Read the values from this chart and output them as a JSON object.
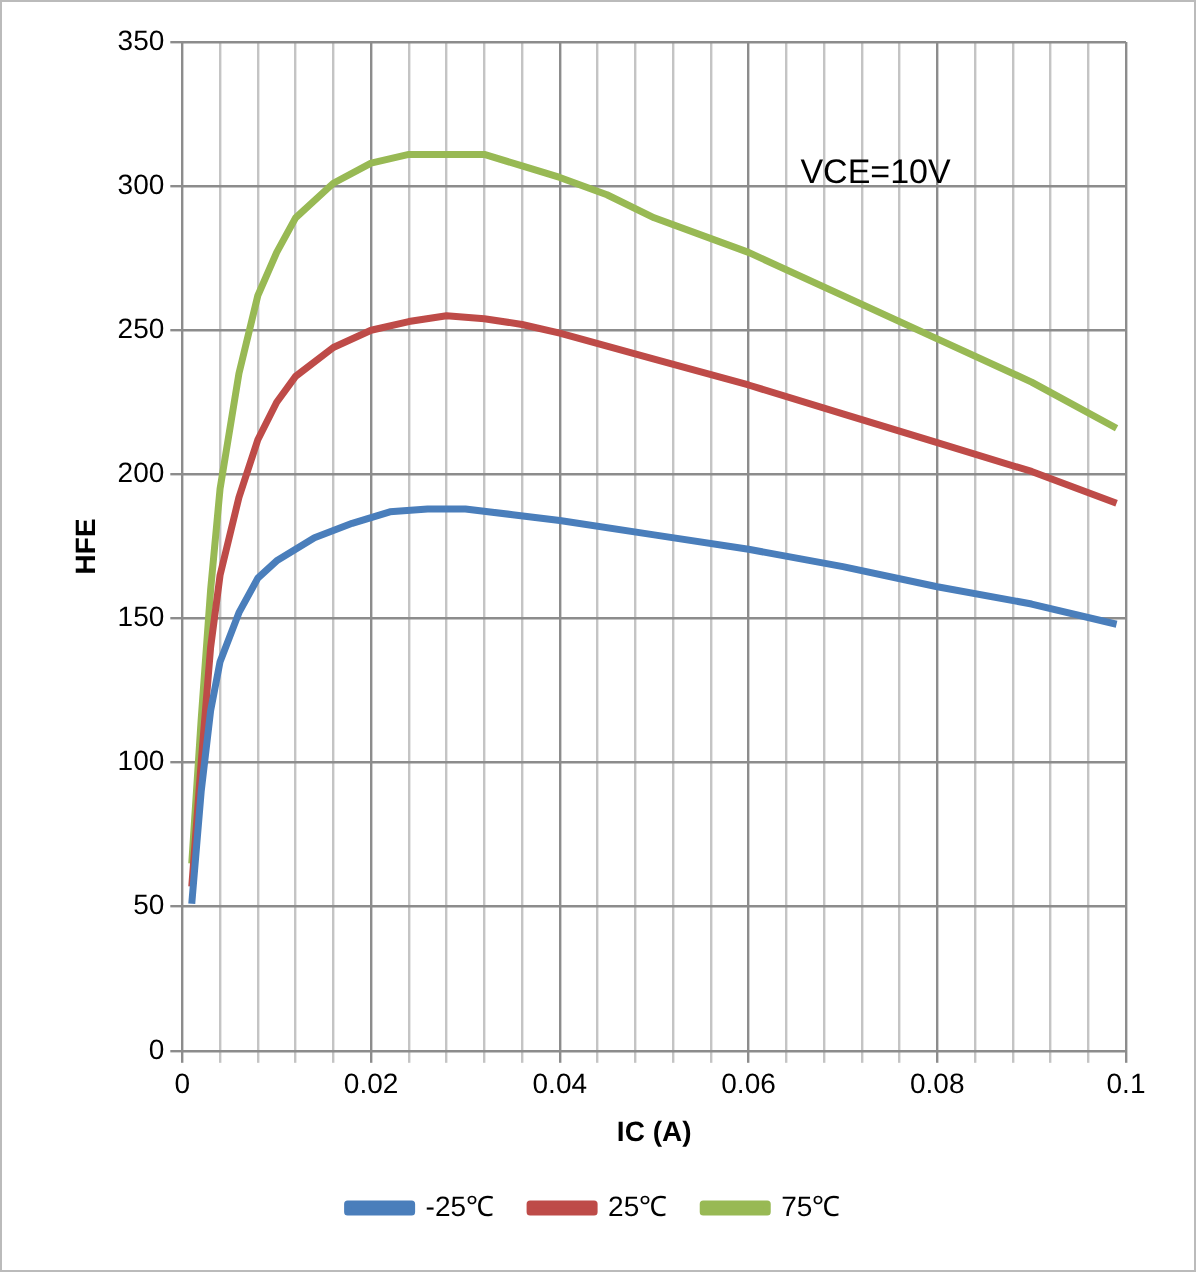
{
  "chart_data": {
    "type": "line",
    "xlabel": "IC (A)",
    "ylabel": "HFE",
    "xlim": [
      0,
      0.1
    ],
    "ylim": [
      0,
      350
    ],
    "xticks": [
      0,
      {
        "value": 0.004,
        "label": null
      },
      {
        "value": 0.008,
        "label": null
      },
      {
        "value": 0.012,
        "label": null
      },
      {
        "value": 0.016,
        "label": null
      },
      0.02,
      {
        "value": 0.024,
        "label": null
      },
      {
        "value": 0.028,
        "label": null
      },
      {
        "value": 0.032,
        "label": null
      },
      {
        "value": 0.036,
        "label": null
      },
      0.04,
      {
        "value": 0.044,
        "label": null
      },
      {
        "value": 0.048,
        "label": null
      },
      {
        "value": 0.052,
        "label": null
      },
      {
        "value": 0.056,
        "label": null
      },
      0.06,
      {
        "value": 0.064,
        "label": null
      },
      {
        "value": 0.068,
        "label": null
      },
      {
        "value": 0.072,
        "label": null
      },
      {
        "value": 0.076,
        "label": null
      },
      0.08,
      {
        "value": 0.084,
        "label": null
      },
      {
        "value": 0.088,
        "label": null
      },
      {
        "value": 0.092,
        "label": null
      },
      {
        "value": 0.096,
        "label": null
      },
      0.1
    ],
    "yticks": [
      0,
      50,
      100,
      150,
      200,
      250,
      300,
      350
    ],
    "grid": true,
    "legend": "bottom",
    "marker": "none",
    "line_style": "solid",
    "annotations": [
      "VCE=10V"
    ],
    "series": [
      {
        "name": "-25℃",
        "color": "#4a7ebb",
        "x": [
          0.001,
          0.002,
          0.003,
          0.004,
          0.006,
          0.008,
          0.01,
          0.014,
          0.018,
          0.022,
          0.026,
          0.03,
          0.035,
          0.04,
          0.05,
          0.06,
          0.07,
          0.08,
          0.09,
          0.099
        ],
        "values": [
          51,
          90,
          118,
          135,
          152,
          164,
          170,
          178,
          183,
          187,
          188,
          188,
          186,
          184,
          179,
          174,
          168,
          161,
          155,
          148
        ]
      },
      {
        "name": "25℃",
        "color": "#be4b48",
        "x": [
          0.001,
          0.002,
          0.003,
          0.004,
          0.006,
          0.008,
          0.01,
          0.012,
          0.016,
          0.02,
          0.024,
          0.028,
          0.032,
          0.036,
          0.04,
          0.05,
          0.06,
          0.07,
          0.08,
          0.09,
          0.099
        ],
        "values": [
          57,
          100,
          140,
          165,
          192,
          212,
          225,
          234,
          244,
          250,
          253,
          255,
          254,
          252,
          249,
          240,
          231,
          221,
          211,
          201,
          190
        ]
      },
      {
        "name": "75℃",
        "color": "#98b954",
        "x": [
          0.001,
          0.002,
          0.003,
          0.004,
          0.006,
          0.008,
          0.01,
          0.012,
          0.016,
          0.02,
          0.024,
          0.028,
          0.032,
          0.036,
          0.04,
          0.045,
          0.05,
          0.06,
          0.07,
          0.08,
          0.09,
          0.099
        ],
        "values": [
          65,
          115,
          160,
          195,
          235,
          262,
          277,
          289,
          301,
          308,
          311,
          311,
          311,
          307,
          303,
          297,
          289,
          277,
          262,
          247,
          232,
          216
        ]
      }
    ]
  }
}
